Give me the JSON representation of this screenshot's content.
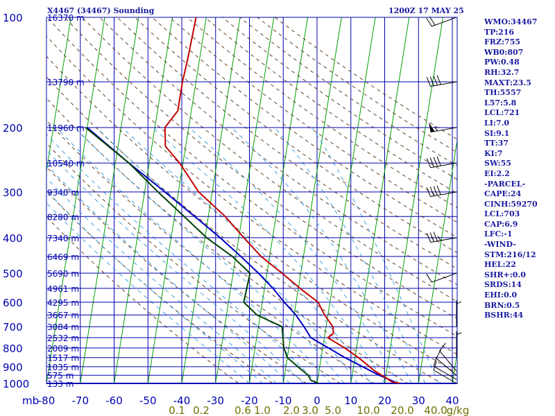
{
  "header": {
    "station_title": "X4467 (34467) Sounding",
    "datetime": "1200Z 17 MAY 25"
  },
  "chart_data": {
    "type": "skew-t log-p sounding",
    "pressure_unit_label": "mb",
    "pressure_ticks": [
      100,
      200,
      300,
      400,
      500,
      600,
      700,
      800,
      900,
      1000
    ],
    "isobar_levels": [
      100,
      150,
      200,
      250,
      300,
      350,
      400,
      450,
      500,
      550,
      600,
      650,
      700,
      750,
      800,
      850,
      900,
      950,
      1000
    ],
    "height_labels": [
      {
        "p": 100,
        "label": "16370 m"
      },
      {
        "p": 150,
        "label": "13790 m"
      },
      {
        "p": 200,
        "label": "11960 m"
      },
      {
        "p": 250,
        "label": "10540 m"
      },
      {
        "p": 300,
        "label": "9340 m"
      },
      {
        "p": 350,
        "label": "8280 m"
      },
      {
        "p": 400,
        "label": "7340 m"
      },
      {
        "p": 450,
        "label": "6469 m"
      },
      {
        "p": 500,
        "label": "5690 m"
      },
      {
        "p": 550,
        "label": "4961 m"
      },
      {
        "p": 600,
        "label": "4295 m"
      },
      {
        "p": 650,
        "label": "3667 m"
      },
      {
        "p": 700,
        "label": "3084 m"
      },
      {
        "p": 750,
        "label": "2532 m"
      },
      {
        "p": 800,
        "label": "2009 m"
      },
      {
        "p": 850,
        "label": "1517 m"
      },
      {
        "p": 900,
        "label": "1035 m"
      },
      {
        "p": 950,
        "label": "575 m"
      },
      {
        "p": 1000,
        "label": "133 m"
      }
    ],
    "temperature_ticks": [
      -80,
      -70,
      -60,
      -50,
      -40,
      -30,
      -20,
      -10,
      0,
      10,
      20,
      30,
      40
    ],
    "x_axis_labels": [
      "-80",
      "-70",
      "-60",
      "-50",
      "-40",
      "-30",
      "-20",
      "-10",
      "0",
      "10",
      "20",
      "30",
      "40"
    ],
    "mixing_ratio_labels": [
      "0.1",
      "0.2",
      "0.6",
      "1.0",
      "2.0",
      "3.0",
      "5.0",
      "10.0",
      "20.0",
      "40.0",
      "g/kg"
    ],
    "temperature_profile": [
      {
        "p": 1000,
        "t": 24.5
      },
      {
        "p": 990,
        "t": 22
      },
      {
        "p": 970,
        "t": 20.5
      },
      {
        "p": 925,
        "t": 16.5
      },
      {
        "p": 850,
        "t": 11
      },
      {
        "p": 800,
        "t": 6.5
      },
      {
        "p": 750,
        "t": 1
      },
      {
        "p": 730,
        "t": 2.5
      },
      {
        "p": 700,
        "t": 2
      },
      {
        "p": 650,
        "t": -1
      },
      {
        "p": 600,
        "t": -3.5
      },
      {
        "p": 550,
        "t": -9.5
      },
      {
        "p": 500,
        "t": -15.5
      },
      {
        "p": 450,
        "t": -22.5
      },
      {
        "p": 400,
        "t": -28.5
      },
      {
        "p": 350,
        "t": -35
      },
      {
        "p": 300,
        "t": -44
      },
      {
        "p": 250,
        "t": -51
      },
      {
        "p": 225,
        "t": -56
      },
      {
        "p": 200,
        "t": -57
      },
      {
        "p": 180,
        "t": -54
      },
      {
        "p": 150,
        "t": -54
      },
      {
        "p": 130,
        "t": -53.5
      },
      {
        "p": 100,
        "t": -53
      }
    ],
    "dewpoint_profile": [
      {
        "p": 1000,
        "t": 0.5
      },
      {
        "p": 980,
        "t": -2
      },
      {
        "p": 950,
        "t": -3
      },
      {
        "p": 900,
        "t": -6.5
      },
      {
        "p": 850,
        "t": -10
      },
      {
        "p": 800,
        "t": -11.5
      },
      {
        "p": 700,
        "t": -13
      },
      {
        "p": 650,
        "t": -21
      },
      {
        "p": 600,
        "t": -25.5
      },
      {
        "p": 500,
        "t": -25
      },
      {
        "p": 450,
        "t": -31
      },
      {
        "p": 400,
        "t": -39.5
      },
      {
        "p": 300,
        "t": -56
      },
      {
        "p": 250,
        "t": -66
      },
      {
        "p": 200,
        "t": -80.5
      }
    ],
    "parcel_profile": [
      {
        "p": 1000,
        "t": 24
      },
      {
        "p": 950,
        "t": 18
      },
      {
        "p": 850,
        "t": 7
      },
      {
        "p": 750,
        "t": -4
      },
      {
        "p": 700,
        "t": -6.5
      },
      {
        "p": 650,
        "t": -9.5
      },
      {
        "p": 600,
        "t": -13.5
      },
      {
        "p": 550,
        "t": -17.5
      },
      {
        "p": 500,
        "t": -22.5
      },
      {
        "p": 450,
        "t": -28.5
      },
      {
        "p": 400,
        "t": -35.5
      },
      {
        "p": 350,
        "t": -44
      },
      {
        "p": 300,
        "t": -54
      },
      {
        "p": 250,
        "t": -66
      },
      {
        "p": 200,
        "t": -80
      }
    ],
    "wind_barbs": [
      {
        "p": 1000,
        "dir": 300,
        "spd": 10
      },
      {
        "p": 975,
        "dir": 300,
        "spd": 10
      },
      {
        "p": 950,
        "dir": 310,
        "spd": 10
      },
      {
        "p": 925,
        "dir": 320,
        "spd": 10
      },
      {
        "p": 850,
        "dir": 360,
        "spd": 5
      },
      {
        "p": 700,
        "dir": 360,
        "spd": 5
      },
      {
        "p": 500,
        "dir": 250,
        "spd": 10
      },
      {
        "p": 400,
        "dir": 260,
        "spd": 35
      },
      {
        "p": 300,
        "dir": 260,
        "spd": 40
      },
      {
        "p": 250,
        "dir": 260,
        "spd": 40
      },
      {
        "p": 200,
        "dir": 260,
        "spd": 55
      },
      {
        "p": 150,
        "dir": 260,
        "spd": 40
      },
      {
        "p": 100,
        "dir": 250,
        "spd": 20
      }
    ],
    "colors": {
      "frame": "#0000b0",
      "labels": "#1a1aa0",
      "isotherm": "#00a000",
      "dry_adiabat": "#604020",
      "moist_adiabat": "#40a0e0",
      "mixing_ratio_text": "#707000",
      "temperature": "#c00000",
      "dewpoint": "#004000",
      "parcel": "#0000c0",
      "wind_barb": "#000000"
    }
  },
  "stats": [
    "WMO:34467",
    "TP:216",
    "FRZ:755",
    "WB0:807",
    "PW:0.48",
    "RH:32.7",
    "MAXT:23.5",
    "TH:5557",
    "L57:5.8",
    "LCL:721",
    "LI:7.0",
    "SI:9.1",
    "TT:37",
    "KI:7",
    "SW:55",
    "EI:2.2",
    "-PARCEL-",
    "CAPE:24",
    "CINH:59270",
    "LCL:703",
    "CAP:6.9",
    "LFC:-1",
    "-WIND-",
    "STM:216/12",
    "HEL:22",
    "SHR+:0.0",
    "SRDS:14",
    "EHI:0.0",
    "BRN:0.5",
    "BSHR:44"
  ]
}
